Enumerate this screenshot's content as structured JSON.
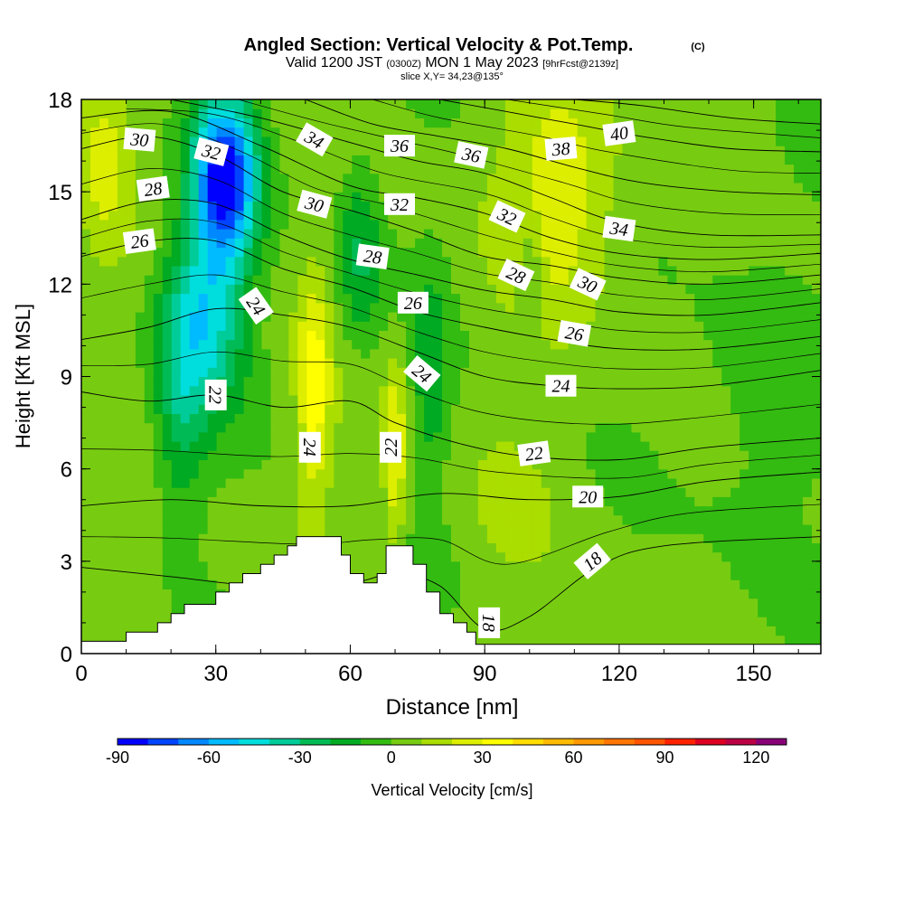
{
  "header": {
    "title_main": "Angled Section: Vertical Velocity & Pot.Temp.",
    "title_copyright": "(C)",
    "valid_prefix": "Valid 1200 JST",
    "valid_utc": "(0300Z)",
    "valid_date": "MON 1 May 2023",
    "valid_fcst": "[9hrFcst@2139z]",
    "slice": "slice X,Y= 34,23@135°"
  },
  "chart_data": {
    "type": "heatmap",
    "xlabel": "Distance [nm]",
    "ylabel": "Height [Kft MSL]",
    "xlim": [
      0,
      165
    ],
    "ylim": [
      0,
      18
    ],
    "x_ticks": [
      0,
      30,
      60,
      90,
      120,
      150
    ],
    "y_ticks": [
      0,
      3,
      6,
      9,
      12,
      15,
      18
    ],
    "x_tick_labels": [
      "0",
      "30",
      "60",
      "90",
      "120",
      "150"
    ],
    "y_tick_labels": [
      "0",
      "3",
      "6",
      "9",
      "12",
      "15",
      "18"
    ],
    "colorbar": {
      "label": "Vertical Velocity [cm/s]",
      "min": -90,
      "max": 130,
      "step": 10,
      "tick_values": [
        -90,
        -60,
        -30,
        0,
        30,
        60,
        90,
        120
      ],
      "tick_labels": [
        "-90",
        "-60",
        "-30",
        "0",
        "30",
        "60",
        "90",
        "120"
      ],
      "colors": [
        "#0000ff",
        "#0044ff",
        "#0088ff",
        "#00bbff",
        "#00dddd",
        "#00cc99",
        "#00bb55",
        "#00aa22",
        "#33bb11",
        "#77cc11",
        "#aadd00",
        "#ddee00",
        "#ffff00",
        "#ffdd00",
        "#ffbb00",
        "#ff9900",
        "#ff7700",
        "#ff5500",
        "#ff2200",
        "#dd0022",
        "#bb0044",
        "#880077"
      ]
    },
    "terrain": [
      [
        0,
        0.4
      ],
      [
        10,
        0.4
      ],
      [
        10,
        0.7
      ],
      [
        17,
        0.7
      ],
      [
        17,
        1.0
      ],
      [
        20,
        1.0
      ],
      [
        20,
        1.3
      ],
      [
        23,
        1.3
      ],
      [
        23,
        1.6
      ],
      [
        30,
        1.6
      ],
      [
        30,
        2.0
      ],
      [
        33,
        2.0
      ],
      [
        33,
        2.3
      ],
      [
        36,
        2.3
      ],
      [
        36,
        2.6
      ],
      [
        40,
        2.6
      ],
      [
        40,
        2.9
      ],
      [
        43,
        2.9
      ],
      [
        43,
        3.2
      ],
      [
        46,
        3.2
      ],
      [
        46,
        3.5
      ],
      [
        48,
        3.5
      ],
      [
        48,
        3.8
      ],
      [
        58,
        3.8
      ],
      [
        58,
        3.2
      ],
      [
        60,
        3.2
      ],
      [
        60,
        2.6
      ],
      [
        63,
        2.6
      ],
      [
        63,
        2.3
      ],
      [
        66,
        2.3
      ],
      [
        66,
        2.6
      ],
      [
        68,
        2.6
      ],
      [
        68,
        3.5
      ],
      [
        74,
        3.5
      ],
      [
        74,
        2.9
      ],
      [
        77,
        2.9
      ],
      [
        77,
        2.0
      ],
      [
        80,
        2.0
      ],
      [
        80,
        1.3
      ],
      [
        83,
        1.3
      ],
      [
        83,
        1.0
      ],
      [
        86,
        1.0
      ],
      [
        86,
        0.7
      ],
      [
        88,
        0.7
      ],
      [
        88,
        0.3
      ],
      [
        165,
        0.3
      ]
    ],
    "theta_contours": [
      {
        "label": "18",
        "points": [
          [
            0,
            2.8
          ],
          [
            20,
            2.5
          ],
          [
            40,
            2.2
          ],
          [
            60,
            2.3
          ],
          [
            70,
            2.6
          ],
          [
            80,
            2.2
          ],
          [
            90,
            0.8
          ],
          [
            100,
            1.2
          ],
          [
            115,
            2.8
          ],
          [
            130,
            3.5
          ],
          [
            165,
            3.8
          ]
        ]
      },
      {
        "label": "20",
        "points": [
          [
            0,
            4.8
          ],
          [
            20,
            5.0
          ],
          [
            40,
            4.8
          ],
          [
            60,
            4.8
          ],
          [
            80,
            5.2
          ],
          [
            100,
            5.0
          ],
          [
            120,
            5.1
          ],
          [
            140,
            5.6
          ],
          [
            165,
            5.9
          ]
        ]
      },
      {
        "label": "22",
        "points": [
          [
            0,
            8.5
          ],
          [
            15,
            8.2
          ],
          [
            30,
            8.4
          ],
          [
            45,
            8.0
          ],
          [
            60,
            8.2
          ],
          [
            70,
            7.5
          ],
          [
            85,
            6.8
          ],
          [
            100,
            6.4
          ],
          [
            120,
            6.3
          ],
          [
            140,
            6.7
          ],
          [
            165,
            7.0
          ]
        ]
      },
      {
        "label": "24",
        "points": [
          [
            0,
            10.2
          ],
          [
            15,
            10.6
          ],
          [
            30,
            11.2
          ],
          [
            45,
            11.0
          ],
          [
            60,
            10.6
          ],
          [
            75,
            9.8
          ],
          [
            90,
            9.0
          ],
          [
            105,
            8.7
          ],
          [
            120,
            8.6
          ],
          [
            140,
            8.7
          ],
          [
            165,
            9.2
          ]
        ]
      },
      {
        "label": "26",
        "points": [
          [
            0,
            12.9
          ],
          [
            15,
            13.4
          ],
          [
            30,
            13.4
          ],
          [
            45,
            12.5
          ],
          [
            60,
            11.9
          ],
          [
            75,
            11.1
          ],
          [
            90,
            10.6
          ],
          [
            105,
            10.2
          ],
          [
            120,
            9.9
          ],
          [
            140,
            9.9
          ],
          [
            165,
            10.3
          ]
        ]
      },
      {
        "label": "28",
        "points": [
          [
            0,
            14.1
          ],
          [
            15,
            14.7
          ],
          [
            30,
            14.6
          ],
          [
            45,
            13.6
          ],
          [
            60,
            12.8
          ],
          [
            75,
            12.3
          ],
          [
            90,
            11.8
          ],
          [
            105,
            11.5
          ],
          [
            120,
            11.1
          ],
          [
            140,
            11.0
          ],
          [
            165,
            11.4
          ]
        ]
      },
      {
        "label": "30",
        "points": [
          [
            0,
            16.4
          ],
          [
            15,
            16.8
          ],
          [
            30,
            16.2
          ],
          [
            45,
            15.0
          ],
          [
            60,
            14.4
          ],
          [
            75,
            13.7
          ],
          [
            90,
            12.9
          ],
          [
            105,
            12.6
          ],
          [
            120,
            12.2
          ],
          [
            140,
            12.0
          ],
          [
            165,
            12.3
          ]
        ]
      },
      {
        "label": "32",
        "points": [
          [
            0,
            17.4
          ],
          [
            20,
            17.6
          ],
          [
            40,
            16.5
          ],
          [
            60,
            15.2
          ],
          [
            75,
            14.8
          ],
          [
            90,
            14.3
          ],
          [
            105,
            13.5
          ],
          [
            120,
            13.0
          ],
          [
            140,
            12.8
          ],
          [
            165,
            13.0
          ]
        ]
      },
      {
        "label": "34",
        "points": [
          [
            20,
            18.0
          ],
          [
            40,
            17.4
          ],
          [
            60,
            16.6
          ],
          [
            75,
            16.0
          ],
          [
            90,
            15.6
          ],
          [
            105,
            14.8
          ],
          [
            120,
            14.0
          ],
          [
            140,
            13.6
          ],
          [
            165,
            13.6
          ]
        ]
      },
      {
        "label": "36",
        "points": [
          [
            50,
            18.0
          ],
          [
            65,
            17.2
          ],
          [
            80,
            16.8
          ],
          [
            95,
            16.4
          ],
          [
            110,
            15.8
          ],
          [
            125,
            15.3
          ],
          [
            145,
            15.0
          ],
          [
            165,
            14.9
          ]
        ]
      },
      {
        "label": "38",
        "points": [
          [
            80,
            18.0
          ],
          [
            95,
            17.6
          ],
          [
            110,
            17.2
          ],
          [
            125,
            16.8
          ],
          [
            145,
            16.4
          ],
          [
            165,
            16.3
          ]
        ]
      },
      {
        "label": "40",
        "points": [
          [
            110,
            18.0
          ],
          [
            125,
            17.8
          ],
          [
            145,
            17.4
          ],
          [
            165,
            17.2
          ]
        ]
      }
    ],
    "contour_labels": [
      {
        "text": "30",
        "x": 13,
        "y": 16.7,
        "rot": 5
      },
      {
        "text": "32",
        "x": 29,
        "y": 16.3,
        "rot": 15
      },
      {
        "text": "34",
        "x": 52,
        "y": 16.7,
        "rot": 30
      },
      {
        "text": "36",
        "x": 71,
        "y": 16.5,
        "rot": 0
      },
      {
        "text": "36",
        "x": 87,
        "y": 16.2,
        "rot": 12
      },
      {
        "text": "38",
        "x": 107,
        "y": 16.4,
        "rot": -5
      },
      {
        "text": "40",
        "x": 120,
        "y": 16.9,
        "rot": -8
      },
      {
        "text": "28",
        "x": 16,
        "y": 15.1,
        "rot": -8
      },
      {
        "text": "30",
        "x": 52,
        "y": 14.6,
        "rot": 15
      },
      {
        "text": "32",
        "x": 71,
        "y": 14.6,
        "rot": 0
      },
      {
        "text": "32",
        "x": 95,
        "y": 14.2,
        "rot": 25
      },
      {
        "text": "34",
        "x": 120,
        "y": 13.8,
        "rot": 8
      },
      {
        "text": "26",
        "x": 13,
        "y": 13.4,
        "rot": -8
      },
      {
        "text": "28",
        "x": 65,
        "y": 12.9,
        "rot": 8
      },
      {
        "text": "28",
        "x": 97,
        "y": 12.3,
        "rot": 25
      },
      {
        "text": "30",
        "x": 113,
        "y": 12.0,
        "rot": 25
      },
      {
        "text": "24",
        "x": 39,
        "y": 11.3,
        "rot": 55
      },
      {
        "text": "26",
        "x": 74,
        "y": 11.4,
        "rot": 0
      },
      {
        "text": "26",
        "x": 110,
        "y": 10.4,
        "rot": 10
      },
      {
        "text": "22",
        "x": 30,
        "y": 8.4,
        "rot": 90
      },
      {
        "text": "24",
        "x": 76,
        "y": 9.1,
        "rot": 40
      },
      {
        "text": "24",
        "x": 107,
        "y": 8.7,
        "rot": 0
      },
      {
        "text": "24",
        "x": 51,
        "y": 6.7,
        "rot": 90
      },
      {
        "text": "22",
        "x": 69,
        "y": 6.7,
        "rot": -90
      },
      {
        "text": "22",
        "x": 101,
        "y": 6.5,
        "rot": -8
      },
      {
        "text": "20",
        "x": 113,
        "y": 5.1,
        "rot": 0
      },
      {
        "text": "18",
        "x": 114,
        "y": 3.0,
        "rot": -40
      },
      {
        "text": "18",
        "x": 91,
        "y": 1.0,
        "rot": 90
      }
    ],
    "velocity_field_notes": "banded field: strong downdraft (~ -90 to -60 cm/s) near x 25-45 nm above 12 kft; updrafts (~ +20 to +30 cm/s) near x 50 nm and x 70 nm, 4-12 kft and x 95-125 nm above 13 kft; elsewhere weak 0 to +10 cm/s"
  }
}
